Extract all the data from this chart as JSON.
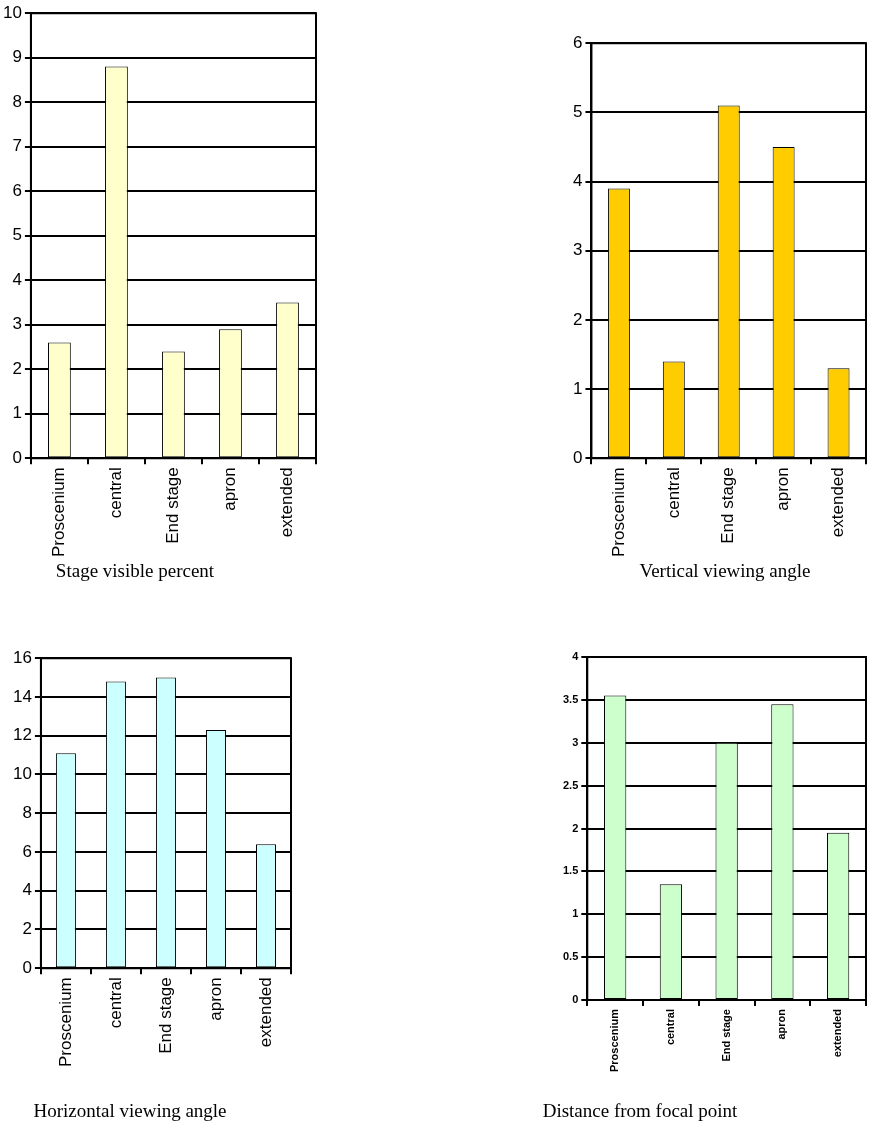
{
  "chart_data": [
    {
      "type": "bar",
      "title": "Stage visible percent",
      "categories": [
        "Proscenium",
        "central",
        "End stage",
        "apron",
        "extended"
      ],
      "values": [
        2.6,
        8.8,
        2.4,
        2.9,
        3.5
      ],
      "color": "#ffffcc",
      "ylim": [
        0,
        10
      ],
      "yticks": [
        0,
        1,
        2,
        3,
        4,
        5,
        6,
        7,
        8,
        9,
        10
      ],
      "grid": "y",
      "legend": false
    },
    {
      "type": "bar",
      "title": "Vertical viewing angle",
      "categories": [
        "Proscenium",
        "central",
        "End stage",
        "apron",
        "extended"
      ],
      "values": [
        3.9,
        1.4,
        5.1,
        4.5,
        1.3
      ],
      "color": "#ffcc00",
      "ylim": [
        0,
        6
      ],
      "yticks": [
        0,
        1,
        2,
        3,
        4,
        5,
        6
      ],
      "grid": "y",
      "legend": false
    },
    {
      "type": "bar",
      "title": "Horizontal viewing angle",
      "categories": [
        "Proscenium",
        "central",
        "End stage",
        "apron",
        "extended"
      ],
      "values": [
        11.1,
        14.8,
        15.0,
        12.3,
        6.4
      ],
      "color": "#ccffff",
      "ylim": [
        0,
        16
      ],
      "yticks": [
        0,
        2,
        4,
        6,
        8,
        10,
        12,
        14,
        16
      ],
      "grid": "y",
      "legend": false
    },
    {
      "type": "bar",
      "title": "Distance from focal point",
      "categories": [
        "Proscenium",
        "central",
        "End stage",
        "apron",
        "extended"
      ],
      "values": [
        3.55,
        1.35,
        3.0,
        3.45,
        1.95
      ],
      "color": "#ccffcc",
      "ylim": [
        0,
        4
      ],
      "yticks": [
        0,
        0.5,
        1,
        1.5,
        2,
        2.5,
        3,
        3.5,
        4
      ],
      "grid": "y",
      "legend": false
    }
  ]
}
